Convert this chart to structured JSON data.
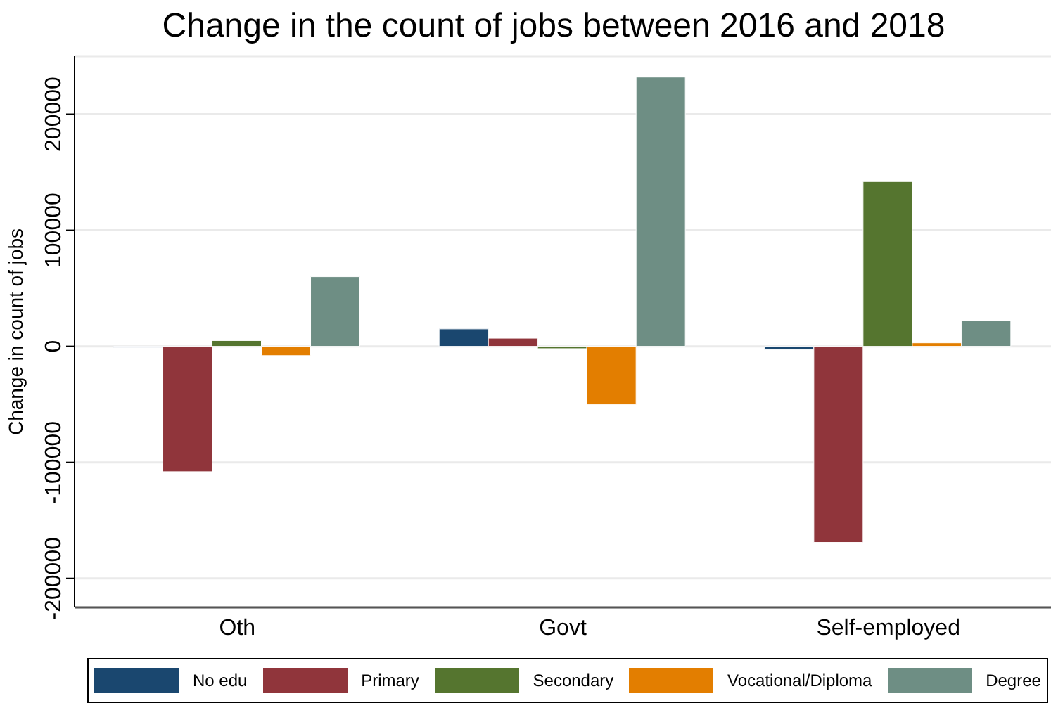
{
  "chart_data": {
    "type": "bar",
    "title": "Change in the count of jobs between 2016 and 2018",
    "ylabel": "Change in count of jobs",
    "categories": [
      "Oth",
      "Govt",
      "Self-employed"
    ],
    "series": [
      {
        "name": "No edu",
        "color": "#1a476f",
        "values": [
          -1000,
          15000,
          -3000
        ]
      },
      {
        "name": "Primary",
        "color": "#90353b",
        "values": [
          -108000,
          7000,
          -169000
        ]
      },
      {
        "name": "Secondary",
        "color": "#55752f",
        "values": [
          5000,
          -2000,
          142000
        ]
      },
      {
        "name": "Vocational/Diploma",
        "color": "#e37e00",
        "values": [
          -8000,
          -50000,
          3000
        ]
      },
      {
        "name": "Degree",
        "color": "#6e8e84",
        "values": [
          60000,
          232000,
          22000
        ]
      }
    ],
    "ylim": [
      -225000,
      250000
    ],
    "yticks": [
      -200000,
      -100000,
      0,
      100000,
      200000
    ],
    "grid": "y",
    "legend": "bottom"
  }
}
